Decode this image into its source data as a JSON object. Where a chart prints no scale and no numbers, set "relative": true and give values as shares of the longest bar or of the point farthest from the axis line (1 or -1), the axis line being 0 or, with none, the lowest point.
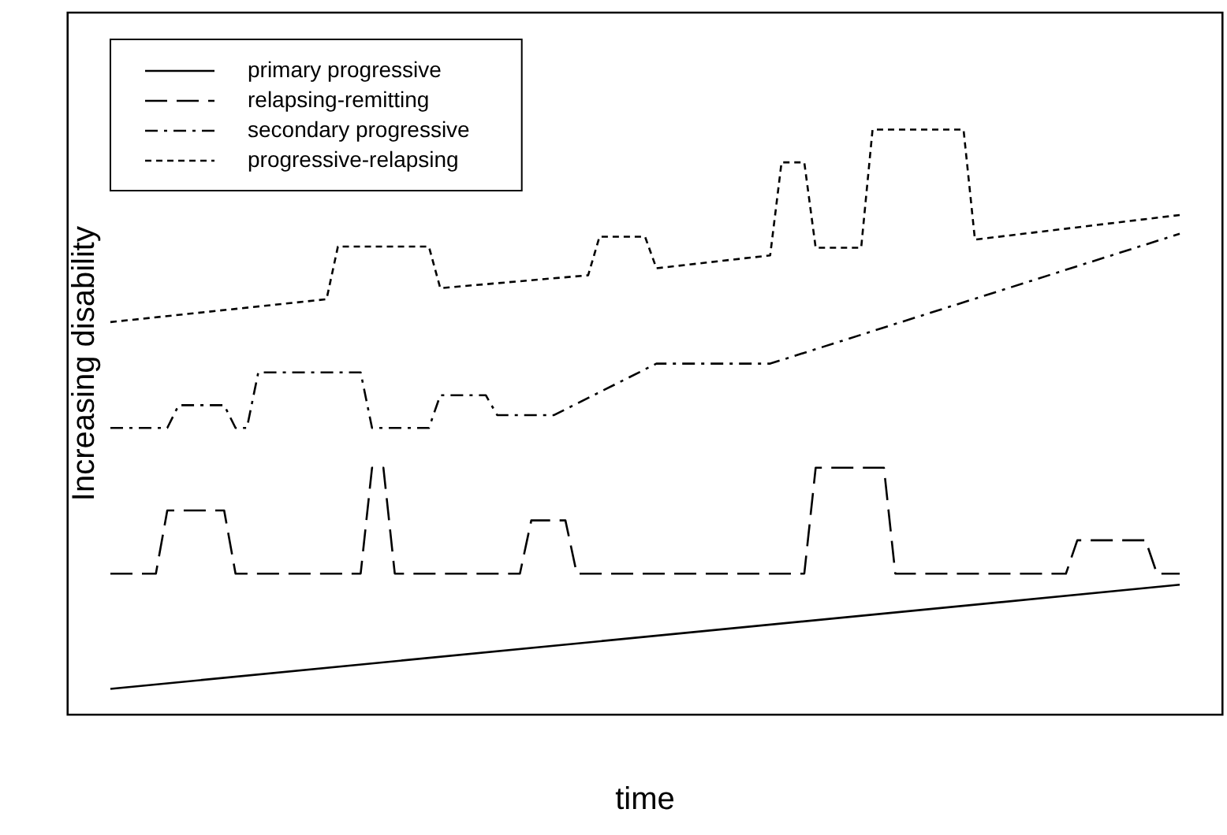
{
  "chart_data": {
    "type": "line",
    "xlabel": "time",
    "ylabel": "Increasing disability",
    "relative": true,
    "grid": false,
    "legend": "top left",
    "marker": "none",
    "categories": [
      null,
      null,
      null,
      null,
      null,
      null,
      null,
      null,
      null,
      null,
      null,
      null,
      null,
      null,
      null,
      null,
      null,
      null,
      null,
      null,
      null,
      null,
      null,
      null,
      null,
      null,
      null,
      null,
      null,
      null,
      null,
      null,
      null,
      null,
      null,
      null,
      null,
      null,
      null,
      null,
      null,
      null,
      null,
      null,
      null,
      null,
      null,
      null,
      null,
      null,
      null,
      null,
      null,
      null,
      null,
      null,
      null,
      null,
      null,
      null,
      null,
      null,
      null,
      null,
      null,
      null,
      null,
      null,
      null,
      null,
      null,
      null,
      null,
      null,
      null,
      null,
      null,
      null,
      null,
      null,
      null,
      null,
      null,
      null,
      null,
      null,
      null,
      null,
      null,
      null,
      null,
      null,
      null,
      null,
      null
    ],
    "series": [
      {
        "name": "primary progressive",
        "color": "#000000",
        "line_style": "solid",
        "values": [
          0.044,
          null,
          null,
          null,
          null,
          null,
          null,
          null,
          null,
          null,
          null,
          null,
          null,
          null,
          null,
          null,
          null,
          null,
          null,
          null,
          null,
          null,
          null,
          null,
          null,
          null,
          null,
          null,
          null,
          null,
          null,
          null,
          null,
          null,
          null,
          null,
          null,
          null,
          null,
          null,
          null,
          null,
          null,
          null,
          null,
          null,
          null,
          null,
          null,
          null,
          null,
          null,
          null,
          null,
          null,
          null,
          null,
          null,
          null,
          null,
          null,
          null,
          null,
          null,
          null,
          null,
          null,
          null,
          null,
          null,
          null,
          null,
          null,
          null,
          null,
          null,
          null,
          null,
          null,
          null,
          null,
          null,
          null,
          null,
          null,
          null,
          null,
          null,
          null,
          null,
          null,
          null,
          null,
          null,
          0.222
        ]
      },
      {
        "name": "relapsing-remitting",
        "color": "#000000",
        "line_style": "dashed",
        "values": [
          0.241,
          null,
          null,
          null,
          0.241,
          0.349,
          null,
          null,
          null,
          null,
          0.349,
          0.241,
          null,
          null,
          null,
          null,
          null,
          null,
          null,
          null,
          null,
          null,
          0.241,
          0.422,
          0.422,
          0.241,
          null,
          null,
          null,
          null,
          null,
          null,
          null,
          null,
          null,
          null,
          0.241,
          0.332,
          null,
          null,
          0.332,
          0.241,
          null,
          null,
          null,
          null,
          null,
          null,
          null,
          null,
          null,
          null,
          null,
          null,
          null,
          null,
          null,
          null,
          null,
          null,
          null,
          0.241,
          0.422,
          null,
          null,
          null,
          null,
          null,
          0.422,
          0.241,
          null,
          null,
          null,
          null,
          null,
          null,
          null,
          null,
          null,
          null,
          null,
          null,
          null,
          null,
          0.241,
          0.298,
          null,
          null,
          null,
          null,
          null,
          0.298,
          0.241,
          null,
          0.241
        ]
      },
      {
        "name": "secondary progressive",
        "color": "#000000",
        "line_style": "dashdot",
        "values": [
          0.49,
          null,
          null,
          null,
          null,
          0.49,
          0.529,
          null,
          null,
          null,
          0.529,
          0.49,
          0.49,
          0.585,
          null,
          null,
          null,
          null,
          null,
          null,
          null,
          null,
          0.585,
          0.49,
          null,
          null,
          null,
          null,
          0.49,
          0.546,
          null,
          null,
          null,
          0.546,
          0.512,
          null,
          null,
          null,
          null,
          0.512,
          null,
          null,
          null,
          null,
          null,
          null,
          null,
          null,
          0.6,
          null,
          null,
          null,
          null,
          null,
          null,
          null,
          null,
          null,
          0.6,
          null,
          null,
          null,
          null,
          null,
          null,
          null,
          null,
          null,
          null,
          null,
          null,
          null,
          null,
          null,
          null,
          null,
          null,
          null,
          null,
          null,
          null,
          null,
          null,
          null,
          null,
          null,
          null,
          null,
          null,
          null,
          null,
          null,
          null,
          null,
          0.822
        ]
      },
      {
        "name": "progressive-relapsing",
        "color": "#000000",
        "line_style": "dotted",
        "values": [
          0.671,
          null,
          null,
          null,
          null,
          null,
          null,
          null,
          null,
          null,
          null,
          null,
          null,
          null,
          null,
          null,
          null,
          null,
          null,
          0.71,
          0.8,
          null,
          null,
          null,
          null,
          null,
          null,
          null,
          0.8,
          0.729,
          null,
          null,
          null,
          null,
          null,
          null,
          null,
          null,
          null,
          null,
          null,
          null,
          0.751,
          0.817,
          null,
          null,
          null,
          0.817,
          0.763,
          null,
          null,
          null,
          null,
          null,
          null,
          null,
          null,
          null,
          0.785,
          0.944,
          null,
          0.944,
          0.798,
          null,
          null,
          null,
          0.798,
          1.0,
          null,
          null,
          null,
          null,
          null,
          null,
          null,
          1.0,
          0.812,
          null,
          null,
          null,
          null,
          null,
          null,
          null,
          null,
          null,
          null,
          null,
          null,
          null,
          null,
          null,
          null,
          null,
          0.854
        ]
      }
    ]
  }
}
